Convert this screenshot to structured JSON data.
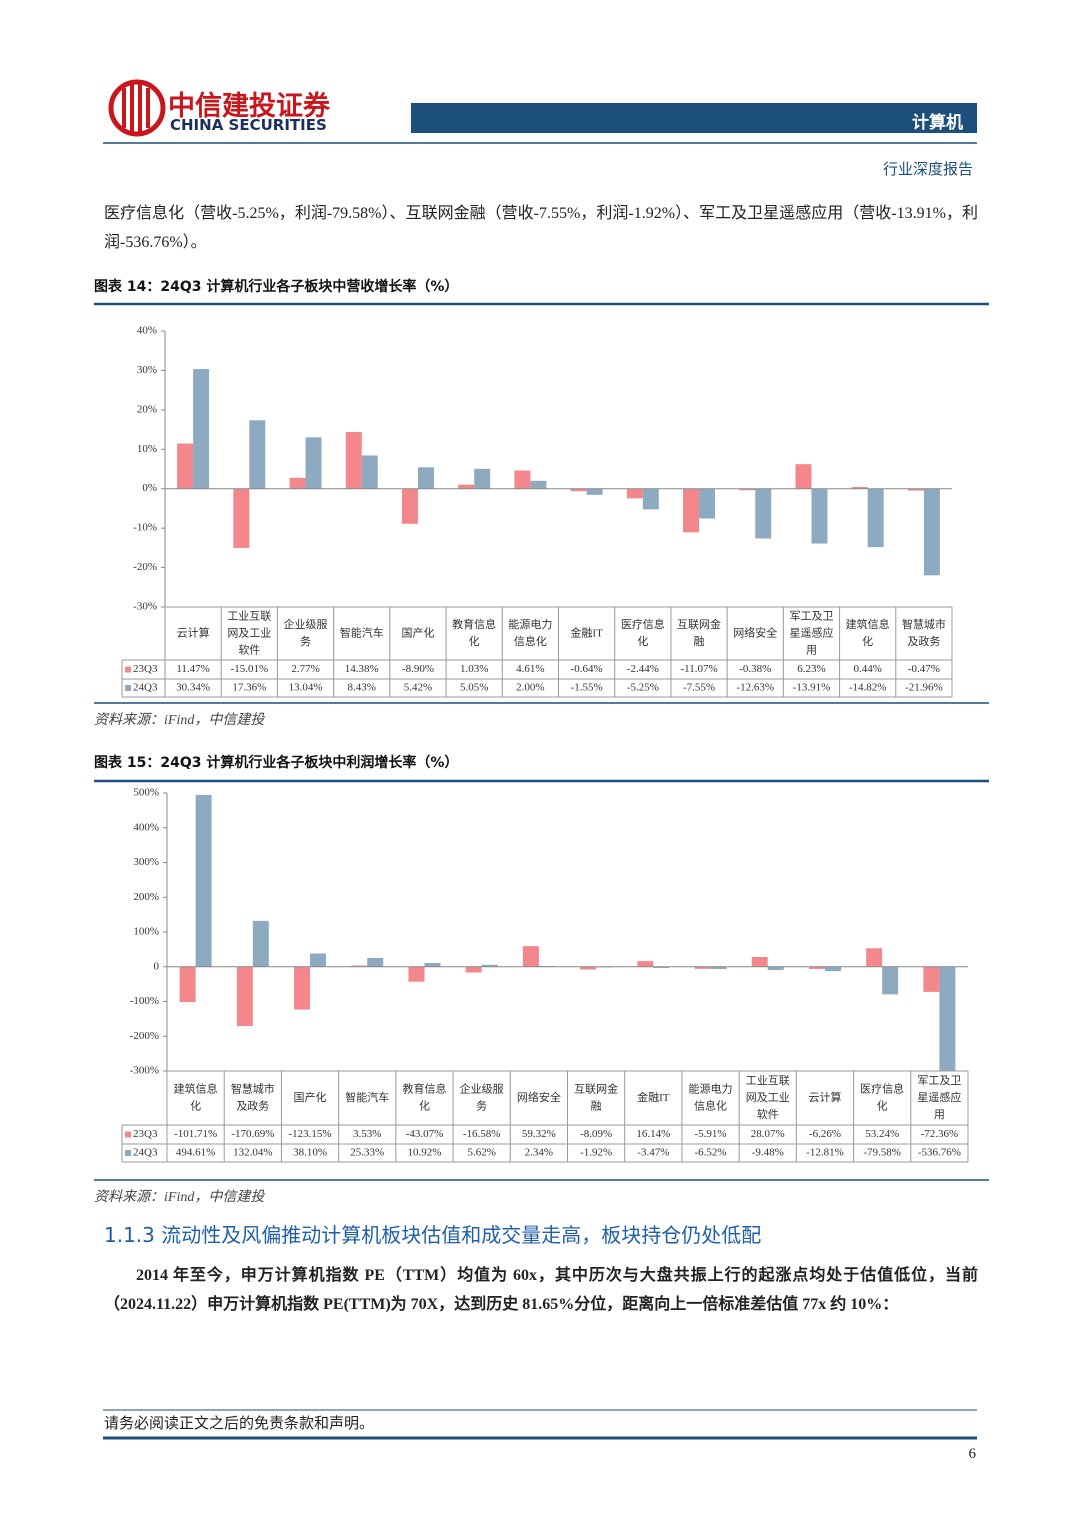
{
  "header": {
    "brand": "中信建投证券",
    "brand_en": "CHINA SECURITIES",
    "sector": "计算机",
    "report_type": "行业深度报告"
  },
  "paragraph_1": "医疗信息化（营收-5.25%，利润-79.58%）、互联网金融（营收-7.55%，利润-1.92%）、军工及卫星遥感应用（营收-13.91%，利润-536.76%）。",
  "chart_data": [
    {
      "type": "bar",
      "title": "图表 14：24Q3 计算机行业各子板块中营收增长率（%）",
      "source": "资料来源：iFind，中信建投",
      "categories": [
        "云计算",
        "工业互联网及工业软件",
        "企业级服务",
        "智能汽车",
        "国产化",
        "教育信息化",
        "能源电力信息化",
        "金融IT",
        "医疗信息化",
        "互联网金融",
        "网络安全",
        "军工及卫星遥感应用",
        "建筑信息化",
        "智慧城市及政务"
      ],
      "series": [
        {
          "name": "23Q3",
          "color": "#f4878b",
          "values": [
            11.47,
            -15.01,
            2.77,
            14.38,
            -8.9,
            1.03,
            4.61,
            -0.64,
            -2.44,
            -11.07,
            -0.38,
            6.23,
            0.44,
            -0.47
          ],
          "value_labels": [
            "11.47%",
            "-15.01%",
            "2.77%",
            "14.38%",
            "-8.90%",
            "1.03%",
            "4.61%",
            "-0.64%",
            "-2.44%",
            "-11.07%",
            "-0.38%",
            "6.23%",
            "0.44%",
            "-0.47%"
          ]
        },
        {
          "name": "24Q3",
          "color": "#8eaac1",
          "values": [
            30.34,
            17.36,
            13.04,
            8.43,
            5.42,
            5.05,
            2.0,
            -1.55,
            -5.25,
            -7.55,
            -12.63,
            -13.91,
            -14.82,
            -21.96
          ],
          "value_labels": [
            "30.34%",
            "17.36%",
            "13.04%",
            "8.43%",
            "5.42%",
            "5.05%",
            "2.00%",
            "-1.55%",
            "-5.25%",
            "-7.55%",
            "-12.63%",
            "-13.91%",
            "-14.82%",
            "-21.96%"
          ]
        }
      ],
      "ylim": [
        -30,
        40
      ],
      "yticks": [
        {
          "value": -30,
          "label": "-30%"
        },
        {
          "value": -20,
          "label": "-20%"
        },
        {
          "value": -10,
          "label": "-10%"
        },
        {
          "value": 0,
          "label": "0%"
        },
        {
          "value": 10,
          "label": "10%"
        },
        {
          "value": 20,
          "label": "20%"
        },
        {
          "value": 30,
          "label": "30%"
        },
        {
          "value": 40,
          "label": "40%"
        }
      ]
    },
    {
      "type": "bar",
      "title": "图表 15：24Q3 计算机行业各子板块中利润增长率（%）",
      "source": "资料来源：iFind，中信建投",
      "categories": [
        "建筑信息化",
        "智慧城市及政务",
        "国产化",
        "智能汽车",
        "教育信息化",
        "企业级服务",
        "网络安全",
        "互联网金融",
        "金融IT",
        "能源电力信息化",
        "工业互联网及工业软件",
        "云计算",
        "医疗信息化",
        "军工及卫星遥感应用"
      ],
      "series": [
        {
          "name": "23Q3",
          "color": "#f4878b",
          "values": [
            -101.71,
            -170.69,
            -123.15,
            3.53,
            -43.07,
            -16.58,
            59.32,
            -8.09,
            16.14,
            -5.91,
            28.07,
            -6.26,
            53.24,
            -72.36
          ],
          "value_labels": [
            "-101.71%",
            "-170.69%",
            "-123.15%",
            "3.53%",
            "-43.07%",
            "-16.58%",
            "59.32%",
            "-8.09%",
            "16.14%",
            "-5.91%",
            "28.07%",
            "-6.26%",
            "53.24%",
            "-72.36%"
          ]
        },
        {
          "name": "24Q3",
          "color": "#8eaac1",
          "values": [
            494.61,
            132.04,
            38.1,
            25.33,
            10.92,
            5.62,
            2.34,
            -1.92,
            -3.47,
            -6.52,
            -9.48,
            -12.81,
            -79.58,
            -536.76
          ],
          "value_labels": [
            "494.61%",
            "132.04%",
            "38.10%",
            "25.33%",
            "10.92%",
            "5.62%",
            "2.34%",
            "-1.92%",
            "-3.47%",
            "-6.52%",
            "-9.48%",
            "-12.81%",
            "-79.58%",
            "-536.76%"
          ]
        }
      ],
      "ylim": [
        -300,
        500
      ],
      "yticks": [
        {
          "value": -300,
          "label": "-300%"
        },
        {
          "value": -200,
          "label": "-200%"
        },
        {
          "value": -100,
          "label": "-100%"
        },
        {
          "value": 0,
          "label": "0"
        },
        {
          "value": 100,
          "label": "100%"
        },
        {
          "value": 200,
          "label": "200%"
        },
        {
          "value": 300,
          "label": "300%"
        },
        {
          "value": 400,
          "label": "400%"
        },
        {
          "value": 500,
          "label": "500%"
        }
      ]
    }
  ],
  "section_heading": "1.1.3 流动性及风偏推动计算机板块估值和成交量走高，板块持仓仍处低配",
  "paragraph_2": "2014 年至今，申万计算机指数 PE（TTM）均值为 60x，其中历次与大盘共振上行的起涨点均处于估值低位，当前（2024.11.22）申万计算机指数 PE(TTM)为 70X，达到历史 81.65%分位，距离向上一倍标准差估值 77x 约 10%：",
  "footer": {
    "disclaimer": "请务必阅读正文之后的免责条款和声明。",
    "page_number": "6"
  }
}
